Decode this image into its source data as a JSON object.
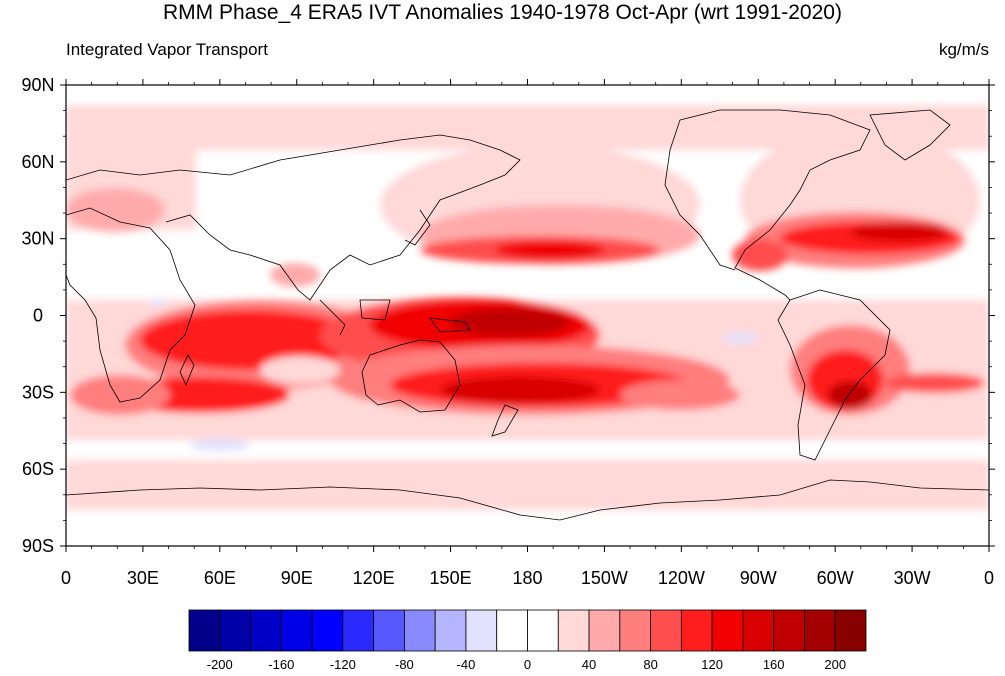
{
  "title": "RMM Phase_4 ERA5 IVT Anomalies 1940-1978 Oct-Apr (wrt 1991-2020)",
  "left_subtitle": "Integrated Vapor Transport",
  "right_subtitle": "kg/m/s",
  "lat_ticks": [
    {
      "lat": 90,
      "label": "90N"
    },
    {
      "lat": 60,
      "label": "60N"
    },
    {
      "lat": 30,
      "label": "30N"
    },
    {
      "lat": 0,
      "label": "0"
    },
    {
      "lat": -30,
      "label": "30S"
    },
    {
      "lat": -60,
      "label": "60S"
    },
    {
      "lat": -90,
      "label": "90S"
    }
  ],
  "lon_ticks": [
    {
      "lon": 0,
      "label": "0"
    },
    {
      "lon": 30,
      "label": "30E"
    },
    {
      "lon": 60,
      "label": "60E"
    },
    {
      "lon": 90,
      "label": "90E"
    },
    {
      "lon": 120,
      "label": "120E"
    },
    {
      "lon": 150,
      "label": "150E"
    },
    {
      "lon": 180,
      "label": "180"
    },
    {
      "lon": 210,
      "label": "150W"
    },
    {
      "lon": 240,
      "label": "120W"
    },
    {
      "lon": 270,
      "label": "90W"
    },
    {
      "lon": 300,
      "label": "60W"
    },
    {
      "lon": 330,
      "label": "30W"
    },
    {
      "lon": 360,
      "label": "0"
    }
  ],
  "colorbar": {
    "colors": [
      "#00008a",
      "#0000a8",
      "#0000c8",
      "#0000e6",
      "#0000ff",
      "#2a2aff",
      "#5858ff",
      "#8a8aff",
      "#b4b4ff",
      "#e2e2ff",
      "#ffffff",
      "#ffffff",
      "#ffd8d8",
      "#ffaaaa",
      "#ff7e7e",
      "#ff4e4e",
      "#ff1e1e",
      "#f00000",
      "#d80000",
      "#c00000",
      "#a40000",
      "#880000"
    ],
    "labels": [
      {
        "index": 1,
        "text": "-200"
      },
      {
        "index": 3,
        "text": "-160"
      },
      {
        "index": 5,
        "text": "-120"
      },
      {
        "index": 7,
        "text": "-80"
      },
      {
        "index": 9,
        "text": "-40"
      },
      {
        "index": 11,
        "text": "0"
      },
      {
        "index": 13,
        "text": "40"
      },
      {
        "index": 15,
        "text": "80"
      },
      {
        "index": 17,
        "text": "120"
      },
      {
        "index": 19,
        "text": "160"
      },
      {
        "index": 21,
        "text": "200"
      }
    ]
  }
}
